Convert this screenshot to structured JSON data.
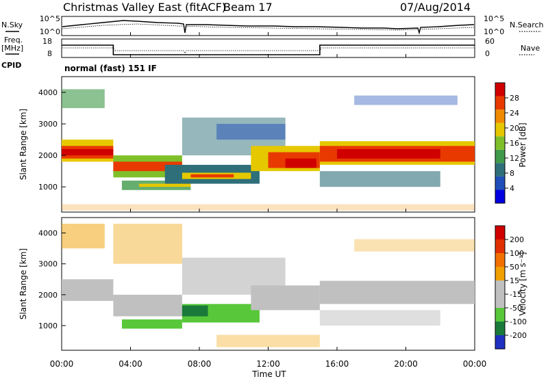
{
  "header": {
    "site_title": "Christmas Valley East (fitACF)",
    "beam": "Beam 17",
    "date": "07/Aug/2014"
  },
  "panels": {
    "nsky_label": "N.Sky",
    "nsearch_label": "N.Search",
    "freq_label_1": "Freq.",
    "freq_label_2": "[MHz]",
    "nave_label": "Nave",
    "cpid_label": "CPID",
    "cpid_text": "normal (fast) 151 IF"
  },
  "chart_data": [
    {
      "type": "line",
      "title": "N.Sky / N.Search",
      "y_ticks_left": [
        "10^5",
        "10^0"
      ],
      "y_ticks_right": [
        "10^5",
        "10^0"
      ]
    },
    {
      "type": "line",
      "title": "Freq. / Nave",
      "y_ticks_left": [
        "18",
        "8"
      ],
      "y_ticks_right": [
        "60",
        "0"
      ],
      "series": [
        {
          "name": "Freq.",
          "x": [
            0,
            3,
            3,
            15,
            15,
            24
          ],
          "y": [
            17,
            17,
            10,
            10,
            17,
            17
          ]
        }
      ]
    },
    {
      "type": "heatmap",
      "ylabel": "Slant Range [km]",
      "yticks": [
        1000,
        2000,
        3000,
        4000
      ],
      "ylim": [
        200,
        4500
      ],
      "xlim": [
        0,
        24
      ],
      "colorbar_label": "Power [dB]",
      "colorbar_ticks": [
        "28",
        "24",
        "20",
        "16",
        "12",
        "8",
        "4"
      ]
    },
    {
      "type": "heatmap",
      "ylabel": "Slant Range [km]",
      "yticks": [
        1000,
        2000,
        3000,
        4000
      ],
      "ylim": [
        200,
        4500
      ],
      "xlim": [
        0,
        24
      ],
      "colorbar_label": "Velocity [m s⁻¹]",
      "colorbar_ticks": [
        "200",
        "100",
        "50",
        "15",
        "-15",
        "-50",
        "-100",
        "-200"
      ]
    }
  ],
  "x_axis": {
    "xlabel": "Time UT",
    "ticks": [
      "00:00",
      "04:00",
      "08:00",
      "12:00",
      "16:00",
      "20:00",
      "00:00"
    ]
  },
  "colors": {
    "power": [
      "#0000e0",
      "#1f4fb8",
      "#2e6f7a",
      "#3f9a4a",
      "#7fc02a",
      "#e6c800",
      "#f08a00",
      "#e83a00",
      "#d00000"
    ],
    "velocity": [
      "#2030c0",
      "#1a7a3a",
      "#58c83a",
      "#c0c0c0",
      "#c0c0c0",
      "#f0a000",
      "#f07000",
      "#e03000",
      "#d00000"
    ]
  }
}
